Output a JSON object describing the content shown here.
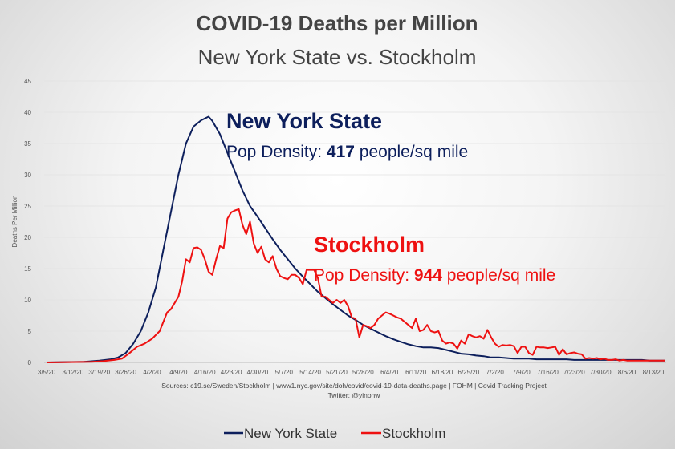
{
  "chart_data": {
    "type": "line",
    "title": "COVID-19 Deaths per Million",
    "subtitle": "New York State vs. Stockholm",
    "ylabel": "Deaths Per Million",
    "xlabel": "",
    "ylim": [
      0,
      45
    ],
    "yticks": [
      0,
      5,
      10,
      15,
      20,
      25,
      30,
      35,
      40,
      45
    ],
    "x_start": "3/5/20",
    "x_end": "8/16/20",
    "xtick_labels": [
      "3/5/20",
      "3/12/20",
      "3/19/20",
      "3/26/20",
      "4/2/20",
      "4/9/20",
      "4/16/20",
      "4/23/20",
      "4/30/20",
      "5/7/20",
      "5/14/20",
      "5/21/20",
      "5/28/20",
      "6/4/20",
      "6/11/20",
      "6/18/20",
      "6/25/20",
      "7/2/20",
      "7/9/20",
      "7/16/20",
      "7/23/20",
      "7/30/20",
      "8/6/20",
      "8/13/20"
    ],
    "series": [
      {
        "name": "New York State",
        "color": "#0d1f5c",
        "points": [
          [
            0,
            0
          ],
          [
            10,
            0.1
          ],
          [
            14,
            0.3
          ],
          [
            17,
            0.5
          ],
          [
            19,
            0.8
          ],
          [
            21,
            1.5
          ],
          [
            23,
            3
          ],
          [
            25,
            5
          ],
          [
            27,
            8
          ],
          [
            29,
            12
          ],
          [
            31,
            18
          ],
          [
            33,
            24
          ],
          [
            35,
            30
          ],
          [
            37,
            35
          ],
          [
            39,
            37.7
          ],
          [
            41,
            38.7
          ],
          [
            43,
            39.3
          ],
          [
            44,
            38.6
          ],
          [
            46,
            36.5
          ],
          [
            48,
            33.5
          ],
          [
            50,
            30.5
          ],
          [
            52,
            27.5
          ],
          [
            54,
            25
          ],
          [
            56,
            23.3
          ],
          [
            58,
            21.5
          ],
          [
            60,
            19.7
          ],
          [
            62,
            18
          ],
          [
            64,
            16.5
          ],
          [
            66,
            15
          ],
          [
            68,
            13.7
          ],
          [
            70,
            12.5
          ],
          [
            72,
            11.3
          ],
          [
            74,
            10.3
          ],
          [
            76,
            9.3
          ],
          [
            78,
            8.4
          ],
          [
            80,
            7.5
          ],
          [
            82,
            6.8
          ],
          [
            84,
            6
          ],
          [
            86,
            5.4
          ],
          [
            88,
            4.8
          ],
          [
            90,
            4.2
          ],
          [
            92,
            3.7
          ],
          [
            94,
            3.3
          ],
          [
            96,
            2.9
          ],
          [
            98,
            2.6
          ],
          [
            100,
            2.4
          ],
          [
            102,
            2.4
          ],
          [
            104,
            2.3
          ],
          [
            106,
            2
          ],
          [
            108,
            1.7
          ],
          [
            110,
            1.4
          ],
          [
            112,
            1.3
          ],
          [
            114,
            1.1
          ],
          [
            116,
            1
          ],
          [
            118,
            0.8
          ],
          [
            120,
            0.8
          ],
          [
            122,
            0.7
          ],
          [
            124,
            0.6
          ],
          [
            126,
            0.6
          ],
          [
            128,
            0.6
          ],
          [
            130,
            0.5
          ],
          [
            132,
            0.5
          ],
          [
            134,
            0.5
          ],
          [
            136,
            0.5
          ],
          [
            138,
            0.5
          ],
          [
            140,
            0.4
          ],
          [
            142,
            0.4
          ],
          [
            144,
            0.4
          ],
          [
            146,
            0.4
          ],
          [
            148,
            0.4
          ],
          [
            150,
            0.4
          ],
          [
            152,
            0.4
          ],
          [
            154,
            0.4
          ],
          [
            156,
            0.4
          ],
          [
            158,
            0.4
          ],
          [
            160,
            0.3
          ],
          [
            162,
            0.3
          ],
          [
            164,
            0.3
          ]
        ]
      },
      {
        "name": "Stockholm",
        "color": "#ee1111",
        "points": [
          [
            0,
            0
          ],
          [
            12,
            0.1
          ],
          [
            15,
            0.2
          ],
          [
            18,
            0.4
          ],
          [
            20,
            0.6
          ],
          [
            22,
            1.5
          ],
          [
            24,
            2.5
          ],
          [
            26,
            3
          ],
          [
            28,
            3.8
          ],
          [
            30,
            5
          ],
          [
            32,
            8
          ],
          [
            33,
            8.5
          ],
          [
            35,
            10.5
          ],
          [
            36,
            13
          ],
          [
            37,
            16.5
          ],
          [
            38,
            16
          ],
          [
            39,
            18.3
          ],
          [
            40,
            18.4
          ],
          [
            41,
            18
          ],
          [
            42,
            16.5
          ],
          [
            43,
            14.5
          ],
          [
            44,
            14
          ],
          [
            45,
            16.5
          ],
          [
            46,
            18.6
          ],
          [
            47,
            18.3
          ],
          [
            48,
            23
          ],
          [
            49,
            24
          ],
          [
            50,
            24.3
          ],
          [
            51,
            24.5
          ],
          [
            52,
            22
          ],
          [
            53,
            20.5
          ],
          [
            54,
            22.5
          ],
          [
            55,
            19
          ],
          [
            56,
            17.5
          ],
          [
            57,
            18.5
          ],
          [
            58,
            16.5
          ],
          [
            59,
            16
          ],
          [
            60,
            17
          ],
          [
            61,
            15
          ],
          [
            62,
            13.8
          ],
          [
            63,
            13.5
          ],
          [
            64,
            13.3
          ],
          [
            65,
            14
          ],
          [
            66,
            14
          ],
          [
            67,
            13.5
          ],
          [
            68,
            12.5
          ],
          [
            69,
            14.8
          ],
          [
            70,
            14.8
          ],
          [
            71,
            14.8
          ],
          [
            72,
            13.5
          ],
          [
            73,
            10.5
          ],
          [
            74,
            10.5
          ],
          [
            75,
            10
          ],
          [
            76,
            9.5
          ],
          [
            77,
            10
          ],
          [
            78,
            9.5
          ],
          [
            79,
            10
          ],
          [
            80,
            9
          ],
          [
            81,
            7.2
          ],
          [
            82,
            7
          ],
          [
            83,
            4
          ],
          [
            84,
            6
          ],
          [
            85,
            5.8
          ],
          [
            86,
            5.5
          ],
          [
            87,
            6
          ],
          [
            88,
            7
          ],
          [
            89,
            7.5
          ],
          [
            90,
            8
          ],
          [
            91,
            7.8
          ],
          [
            92,
            7.5
          ],
          [
            93,
            7.2
          ],
          [
            94,
            7
          ],
          [
            95,
            6.5
          ],
          [
            96,
            6
          ],
          [
            97,
            5.5
          ],
          [
            98,
            7
          ],
          [
            99,
            5
          ],
          [
            100,
            5.2
          ],
          [
            101,
            6
          ],
          [
            102,
            5
          ],
          [
            103,
            4.8
          ],
          [
            104,
            5
          ],
          [
            105,
            3.5
          ],
          [
            106,
            3
          ],
          [
            107,
            3.2
          ],
          [
            108,
            3
          ],
          [
            109,
            2.2
          ],
          [
            110,
            3.5
          ],
          [
            111,
            3
          ],
          [
            112,
            4.5
          ],
          [
            113,
            4.2
          ],
          [
            114,
            4
          ],
          [
            115,
            4.2
          ],
          [
            116,
            3.8
          ],
          [
            117,
            5.2
          ],
          [
            118,
            4
          ],
          [
            119,
            3
          ],
          [
            120,
            2.5
          ],
          [
            121,
            2.8
          ],
          [
            122,
            2.7
          ],
          [
            123,
            2.8
          ],
          [
            124,
            2.6
          ],
          [
            125,
            1.5
          ],
          [
            126,
            2.5
          ],
          [
            127,
            2.5
          ],
          [
            128,
            1.5
          ],
          [
            129,
            1.2
          ],
          [
            130,
            2.5
          ],
          [
            131,
            2.4
          ],
          [
            132,
            2.4
          ],
          [
            133,
            2.3
          ],
          [
            134,
            2.4
          ],
          [
            135,
            2.5
          ],
          [
            136,
            1.2
          ],
          [
            137,
            2.1
          ],
          [
            138,
            1.3
          ],
          [
            139,
            1.5
          ],
          [
            140,
            1.6
          ],
          [
            141,
            1.4
          ],
          [
            142,
            1.3
          ],
          [
            143,
            0.6
          ],
          [
            144,
            0.7
          ],
          [
            145,
            0.6
          ],
          [
            146,
            0.7
          ],
          [
            147,
            0.5
          ],
          [
            148,
            0.6
          ],
          [
            149,
            0.4
          ],
          [
            150,
            0.4
          ],
          [
            151,
            0.5
          ],
          [
            152,
            0.3
          ],
          [
            153,
            0.4
          ],
          [
            154,
            0.3
          ],
          [
            155,
            0.3
          ],
          [
            156,
            0.3
          ],
          [
            157,
            0.3
          ],
          [
            158,
            0.3
          ],
          [
            159,
            0.3
          ],
          [
            160,
            0.3
          ],
          [
            161,
            0.3
          ],
          [
            162,
            0.3
          ],
          [
            163,
            0.3
          ],
          [
            164,
            0.3
          ]
        ]
      }
    ],
    "annotations": [
      {
        "id": "nys",
        "heading": "New York State",
        "label": "Pop Density: ",
        "value": "417",
        "suffix": " people/sq mile",
        "color": "#0d1f5c"
      },
      {
        "id": "sthlm",
        "heading": "Stockholm",
        "label": "Pop Density: ",
        "value": "944",
        "suffix": " people/sq mile",
        "color": "#ee1111"
      }
    ],
    "sources": "Sources:  c19.se/Sweden/Stockholm  |  www1.nyc.gov/site/doh/covid/covid-19-data-deaths.page  |  FOHM  |  Covid Tracking Project",
    "credit": "Twitter: @yinonw",
    "legend": {
      "placement": "bottom-center",
      "entries": [
        "New York State",
        "Stockholm"
      ]
    }
  }
}
